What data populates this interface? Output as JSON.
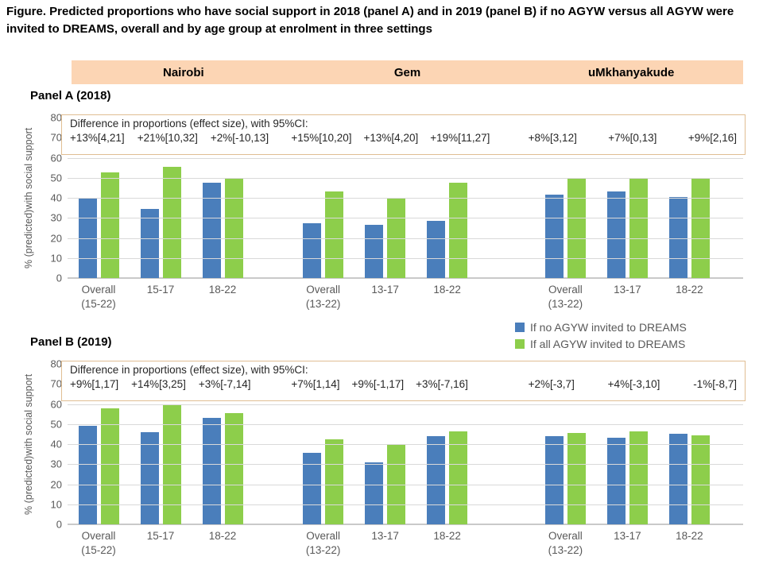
{
  "figure_title": "Figure. Predicted proportions who have social support in 2018 (panel A) and in 2019 (panel B) if no AGYW versus all AGYW were invited to DREAMS, overall and by age group at enrolment in three settings",
  "settings_header": {
    "labels": [
      "Nairobi",
      "Gem",
      "uMkhanyakude"
    ],
    "background": "#FCD5B4"
  },
  "legend": {
    "items": [
      {
        "label": "If no AGYW invited to DREAMS",
        "color": "#4A7EBB"
      },
      {
        "label": "If all AGYW invited to DREAMS",
        "color": "#8DCE4B"
      }
    ]
  },
  "colors": {
    "no_agyw": "#4A7EBB",
    "all_agyw": "#8DCE4B",
    "band_background": "#FCD5B4",
    "effect_box_border": "#E0BE93",
    "gridline": "#D9D9D9",
    "axis": "#C9C9C9",
    "gray_text": "#595959"
  },
  "ylabel": "% (predicted)with social support",
  "chart_data": [
    {
      "type": "bar",
      "panel_title": "Panel A (2018)",
      "ylabel": "% (predicted)with social support",
      "ylim": [
        0,
        80
      ],
      "ytick_step": 10,
      "grid": "horizontal",
      "legend_position": "below-panel-right",
      "effect_note": "Difference in proportions (effect size), with 95%CI:",
      "series_names": [
        "If no AGYW invited to DREAMS",
        "If all AGYW invited to DREAMS"
      ],
      "settings": [
        {
          "name": "Nairobi",
          "categories": [
            "Overall\n(15-22)",
            "15-17",
            "18-22"
          ],
          "effects": [
            "+13%[4,21]",
            "+21%[10,32]",
            "+2%[-10,13]"
          ],
          "series": [
            {
              "name": "If no AGYW invited to DREAMS",
              "values": [
                40,
                34.5,
                47.5
              ]
            },
            {
              "name": "If all AGYW invited to DREAMS",
              "values": [
                52.5,
                55.5,
                49.5
              ]
            }
          ]
        },
        {
          "name": "Gem",
          "categories": [
            "Overall\n(13-22)",
            "13-17",
            "18-22"
          ],
          "effects": [
            "+15%[10,20]",
            "+13%[4,20]",
            "+19%[11,27]"
          ],
          "series": [
            {
              "name": "If no AGYW invited to DREAMS",
              "values": [
                27.5,
                26.5,
                28.5
              ]
            },
            {
              "name": "If all AGYW invited to DREAMS",
              "values": [
                43,
                40,
                47.5
              ]
            }
          ]
        },
        {
          "name": "uMkhanyakude",
          "categories": [
            "Overall\n(13-22)",
            "13-17",
            "18-22"
          ],
          "effects": [
            "+8%[3,12]",
            "+7%[0,13]",
            "+9%[2,16]"
          ],
          "series": [
            {
              "name": "If no AGYW invited to DREAMS",
              "values": [
                41.5,
                43,
                40.5
              ]
            },
            {
              "name": "If all AGYW invited to DREAMS",
              "values": [
                49.5,
                50,
                49.5
              ]
            }
          ]
        }
      ]
    },
    {
      "type": "bar",
      "panel_title": "Panel B (2019)",
      "ylabel": "% (predicted)with social support",
      "ylim": [
        0,
        80
      ],
      "ytick_step": 10,
      "grid": "horizontal",
      "effect_note": "Difference in proportions (effect size), with 95%CI:",
      "series_names": [
        "If no AGYW invited to DREAMS",
        "If all AGYW invited to DREAMS"
      ],
      "settings": [
        {
          "name": "Nairobi",
          "categories": [
            "Overall\n(15-22)",
            "15-17",
            "18-22"
          ],
          "effects": [
            "+9%[1,17]",
            "+14%[3,25]",
            "+3%[-7,14]"
          ],
          "series": [
            {
              "name": "If no AGYW invited to DREAMS",
              "values": [
                49,
                46,
                53
              ]
            },
            {
              "name": "If all AGYW invited to DREAMS",
              "values": [
                58,
                59.5,
                55.5
              ]
            }
          ]
        },
        {
          "name": "Gem",
          "categories": [
            "Overall\n(13-22)",
            "13-17",
            "18-22"
          ],
          "effects": [
            "+7%[1,14]",
            "+9%[-1,17]",
            "+3%[-7,16]"
          ],
          "series": [
            {
              "name": "If no AGYW invited to DREAMS",
              "values": [
                35.5,
                31,
                44
              ]
            },
            {
              "name": "If all AGYW invited to DREAMS",
              "values": [
                42.5,
                40,
                46.5
              ]
            }
          ]
        },
        {
          "name": "uMkhanyakude",
          "categories": [
            "Overall\n(13-22)",
            "13-17",
            "18-22"
          ],
          "effects": [
            "+2%[-3,7]",
            "+4%[-3,10]",
            "-1%[-8,7]"
          ],
          "series": [
            {
              "name": "If no AGYW invited to DREAMS",
              "values": [
                44,
                43,
                45
              ]
            },
            {
              "name": "If all AGYW invited to DREAMS",
              "values": [
                45.5,
                46.5,
                44.5
              ]
            }
          ]
        }
      ]
    }
  ]
}
